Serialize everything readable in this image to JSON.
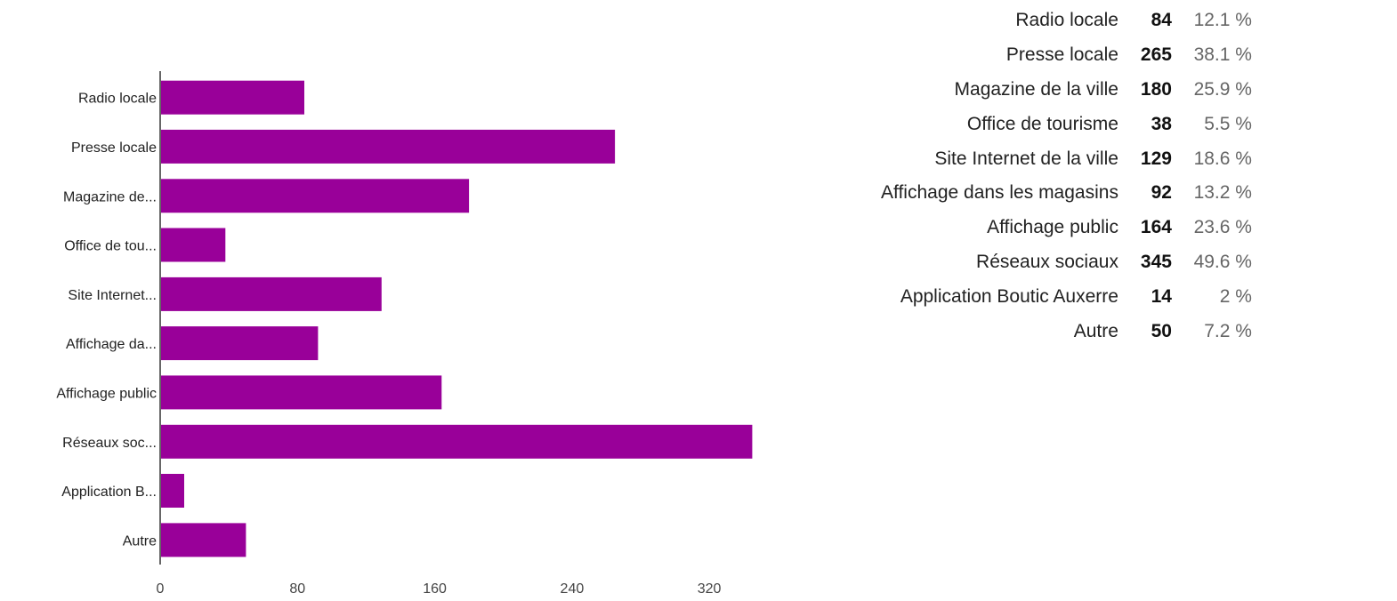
{
  "chart_data": {
    "type": "bar",
    "orientation": "horizontal",
    "categories": [
      "Radio locale",
      "Presse locale",
      "Magazine de la ville",
      "Office de tourisme",
      "Site Internet de la ville",
      "Affichage dans les magasins",
      "Affichage public",
      "Réseaux sociaux",
      "Application Boutic Auxerre",
      "Autre"
    ],
    "axis_category_labels": [
      "Radio locale",
      "Presse locale",
      "Magazine de...",
      "Office de tou...",
      "Site Internet...",
      "Affichage da...",
      "Affichage public",
      "Réseaux soc...",
      "Application B...",
      "Autre"
    ],
    "values": [
      84,
      265,
      180,
      38,
      129,
      92,
      164,
      345,
      14,
      50
    ],
    "percentages": [
      "12.1 %",
      "38.1 %",
      "25.9 %",
      "5.5 %",
      "18.6 %",
      "13.2 %",
      "23.6 %",
      "49.6 %",
      "2 %",
      "7.2 %"
    ],
    "xlim": [
      0,
      350
    ],
    "xticks": [
      0,
      80,
      160,
      240,
      320
    ],
    "grid": false,
    "title": "",
    "xlabel": "",
    "ylabel": "",
    "bar_color": "#990099"
  }
}
